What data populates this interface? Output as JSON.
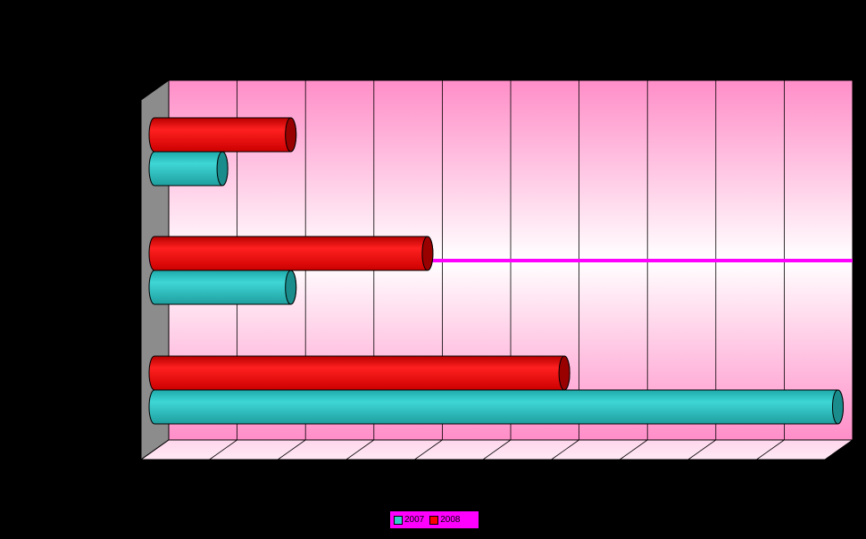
{
  "chart_data": {
    "type": "bar",
    "orientation": "horizontal",
    "style": "3d-cylinder",
    "categories": [
      "",
      "",
      ""
    ],
    "series": [
      {
        "name": "2007",
        "color": "#33cccc",
        "values": [
          1.15,
          2.15,
          10.15
        ]
      },
      {
        "name": "2008",
        "color": "#ff0000",
        "values": [
          2.15,
          4.15,
          6.15
        ]
      }
    ],
    "xlim": [
      0,
      10
    ],
    "grid": true,
    "reference_line": {
      "category_index": 1,
      "color": "#ff00ff"
    },
    "legend": "bottom-center",
    "title": "",
    "xlabel": "",
    "ylabel": ""
  }
}
